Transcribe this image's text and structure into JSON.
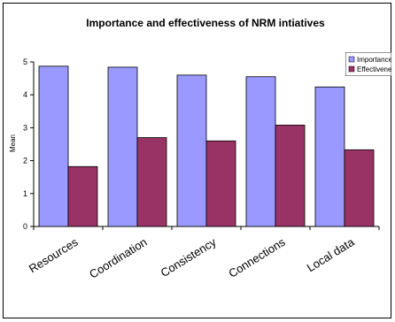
{
  "chart_data": {
    "type": "bar",
    "title": "Importance and effectiveness of NRM intiatives",
    "xlabel": "",
    "ylabel": "Mean",
    "ylim": [
      0,
      5
    ],
    "yticks": [
      0,
      1,
      2,
      3,
      4,
      5
    ],
    "categories": [
      "Resources",
      "Coordination",
      "Consistency",
      "Connections",
      "Local data"
    ],
    "series": [
      {
        "name": "Importance",
        "color": "#9999ff",
        "values": [
          4.87,
          4.84,
          4.6,
          4.55,
          4.24
        ]
      },
      {
        "name": "Effectiveness",
        "color": "#993366",
        "values": [
          1.82,
          2.7,
          2.6,
          3.08,
          2.33
        ]
      }
    ],
    "grid": false,
    "legend_position": "top-right"
  }
}
